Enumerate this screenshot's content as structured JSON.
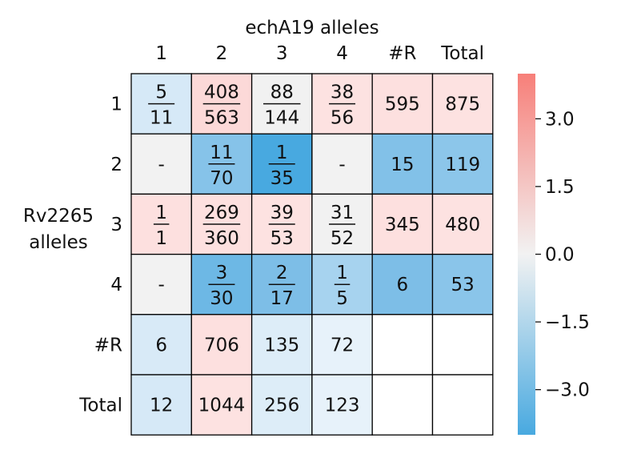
{
  "chart_data": {
    "type": "heatmap",
    "title": "echA19 alleles",
    "ylabel_lines": [
      "Rv2265",
      "alleles"
    ],
    "col_labels": [
      "1",
      "2",
      "3",
      "4",
      "#R",
      "Total"
    ],
    "row_labels": [
      "1",
      "2",
      "3",
      "4",
      "#R",
      "Total"
    ],
    "cells": [
      [
        {
          "num": "5",
          "den": "11",
          "color": "#d6e9f7"
        },
        {
          "num": "408",
          "den": "563",
          "color": "#fcd9d8"
        },
        {
          "num": "88",
          "den": "144",
          "color": "#f1f1f1"
        },
        {
          "num": "38",
          "den": "56",
          "color": "#fde2e1"
        },
        {
          "text": "595",
          "color": "#fde0df"
        },
        {
          "text": "875",
          "color": "#fde2e1"
        }
      ],
      [
        {
          "text": "-",
          "color": "#f2f2f2"
        },
        {
          "num": "11",
          "den": "70",
          "color": "#86c3e9"
        },
        {
          "num": "1",
          "den": "35",
          "color": "#48a9e0"
        },
        {
          "text": "-",
          "color": "#f2f2f2"
        },
        {
          "text": "15",
          "color": "#82c1e8"
        },
        {
          "text": "119",
          "color": "#8cc6ea"
        }
      ],
      [
        {
          "num": "1",
          "den": "1",
          "color": "#fde0df"
        },
        {
          "num": "269",
          "den": "360",
          "color": "#fde0df"
        },
        {
          "num": "39",
          "den": "53",
          "color": "#fde2e1"
        },
        {
          "num": "31",
          "den": "52",
          "color": "#f1f1f1"
        },
        {
          "text": "345",
          "color": "#fde0df"
        },
        {
          "text": "480",
          "color": "#fde2e1"
        }
      ],
      [
        {
          "text": "-",
          "color": "#f2f2f2"
        },
        {
          "num": "3",
          "den": "30",
          "color": "#6db8e5"
        },
        {
          "num": "2",
          "den": "17",
          "color": "#7dbee7"
        },
        {
          "num": "1",
          "den": "5",
          "color": "#a7d3ef"
        },
        {
          "text": "6",
          "color": "#7dbee7"
        },
        {
          "text": "53",
          "color": "#8ac5ea"
        }
      ],
      [
        {
          "text": "6",
          "color": "#d8eaf7"
        },
        {
          "text": "706",
          "color": "#fde0df"
        },
        {
          "text": "135",
          "color": "#ddedf8"
        },
        {
          "text": "72",
          "color": "#e7f2fa"
        },
        {
          "text": "",
          "color": "#ffffff"
        },
        {
          "text": "",
          "color": "#ffffff"
        }
      ],
      [
        {
          "text": "12",
          "color": "#d6e9f7"
        },
        {
          "text": "1044",
          "color": "#fde2e1"
        },
        {
          "text": "256",
          "color": "#ddedf8"
        },
        {
          "text": "123",
          "color": "#e7f2fa"
        },
        {
          "text": "",
          "color": "#ffffff"
        },
        {
          "text": "",
          "color": "#ffffff"
        }
      ]
    ],
    "colorbar": {
      "range": [
        -4.0,
        4.0
      ],
      "ticks": [
        3.0,
        1.5,
        0.0,
        -1.5,
        -3.0
      ],
      "tick_labels": [
        "3.0",
        "1.5",
        "0.0",
        "−1.5",
        "−3.0"
      ],
      "low_color": "#48a9e0",
      "mid_color": "#f2f2f2",
      "high_color": "#f77f79"
    },
    "grid": true
  }
}
